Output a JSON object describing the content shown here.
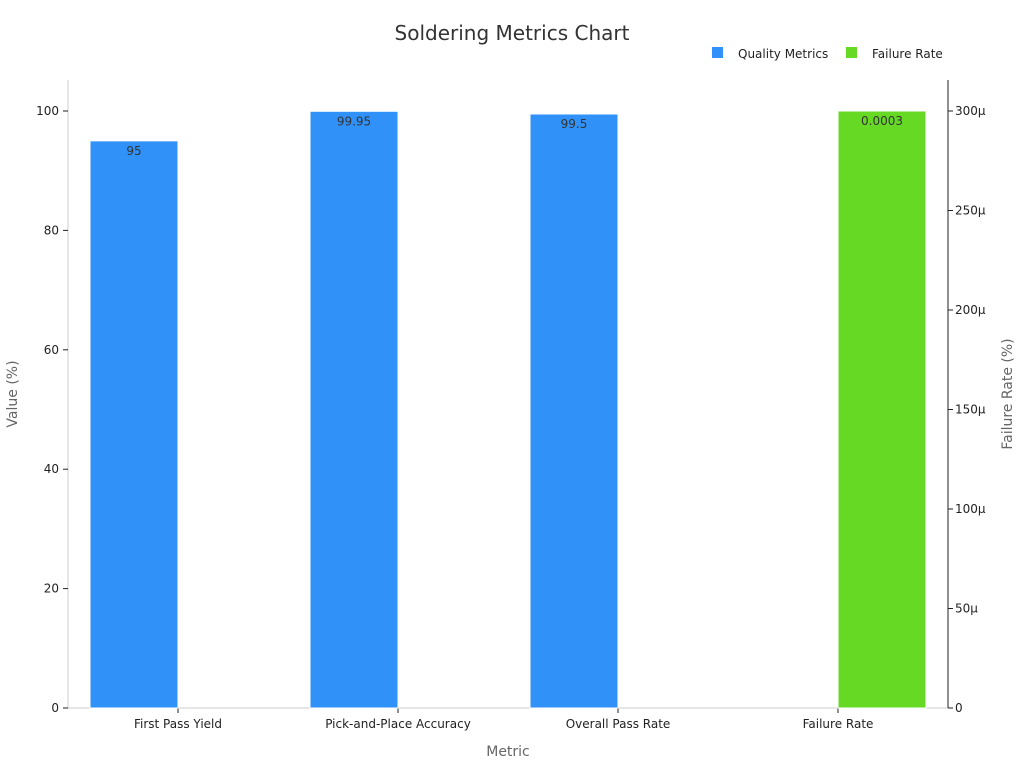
{
  "chart_data": {
    "type": "bar",
    "title": "Soldering Metrics Chart",
    "xlabel": "Metric",
    "ylabel": "Value (%)",
    "y2label": "Failure Rate (%)",
    "categories": [
      "First Pass Yield",
      "Pick-and-Place Accuracy",
      "Overall Pass Rate",
      "Failure Rate"
    ],
    "ylim": [
      0,
      105
    ],
    "y2lim": [
      0,
      0.000315
    ],
    "yticks": [
      0,
      20,
      40,
      60,
      80,
      100
    ],
    "ytick_labels": [
      "0",
      "20",
      "40",
      "60",
      "80",
      "100"
    ],
    "y2ticks": [
      0,
      5e-05,
      0.0001,
      0.00015,
      0.0002,
      0.00025,
      0.0003
    ],
    "y2tick_labels": [
      "0",
      "50μ",
      "100μ",
      "150μ",
      "200μ",
      "250μ",
      "300μ"
    ],
    "grid": false,
    "legend_position": "top-right",
    "series": [
      {
        "name": "Quality Metrics",
        "axis": "left",
        "color": "#3092f8",
        "values": [
          95,
          99.95,
          99.5,
          null
        ],
        "labels": [
          "95",
          "99.95",
          "99.5",
          ""
        ]
      },
      {
        "name": "Failure Rate",
        "axis": "right",
        "color": "#66d925",
        "values": [
          null,
          null,
          null,
          0.0003
        ],
        "labels": [
          "",
          "",
          "",
          "0.0003"
        ]
      }
    ]
  }
}
